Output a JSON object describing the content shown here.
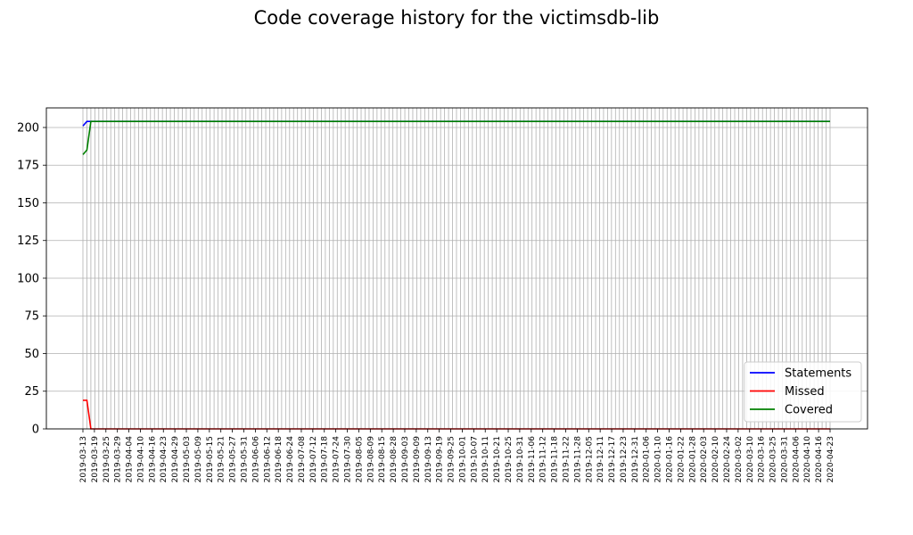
{
  "chart_data": {
    "type": "line",
    "title": "Code coverage history for the victimsdb-lib",
    "xlabel": "",
    "ylabel": "",
    "ylim": [
      0,
      213
    ],
    "yticks": [
      0,
      25,
      50,
      75,
      100,
      125,
      150,
      175,
      200
    ],
    "grid": true,
    "legend_position": "lower-right",
    "xtick_labels": [
      "2019-03-13",
      "2019-03-19",
      "2019-03-25",
      "2019-03-29",
      "2019-04-04",
      "2019-04-10",
      "2019-04-16",
      "2019-04-23",
      "2019-04-29",
      "2019-05-03",
      "2019-05-09",
      "2019-05-15",
      "2019-05-21",
      "2019-05-27",
      "2019-05-31",
      "2019-06-06",
      "2019-06-12",
      "2019-06-18",
      "2019-06-24",
      "2019-07-08",
      "2019-07-12",
      "2019-07-18",
      "2019-07-24",
      "2019-07-30",
      "2019-08-05",
      "2019-08-09",
      "2019-08-15",
      "2019-08-28",
      "2019-09-03",
      "2019-09-09",
      "2019-09-13",
      "2019-09-19",
      "2019-09-25",
      "2019-10-01",
      "2019-10-07",
      "2019-10-11",
      "2019-10-21",
      "2019-10-25",
      "2019-10-31",
      "2019-11-06",
      "2019-11-12",
      "2019-11-18",
      "2019-11-22",
      "2019-11-28",
      "2019-12-05",
      "2019-12-11",
      "2019-12-17",
      "2019-12-23",
      "2019-12-31",
      "2020-01-06",
      "2020-01-10",
      "2020-01-16",
      "2020-01-22",
      "2020-01-28",
      "2020-02-03",
      "2020-02-10",
      "2020-02-24",
      "2020-03-02",
      "2020-03-10",
      "2020-03-16",
      "2020-03-25",
      "2020-03-31",
      "2020-04-06",
      "2020-04-10",
      "2020-04-16",
      "2020-04-23"
    ],
    "series": [
      {
        "name": "Statements",
        "color": "#0000ff",
        "first_values": [
          201,
          204,
          204
        ],
        "steady_value": 204
      },
      {
        "name": "Missed",
        "color": "#ff0000",
        "first_values": [
          19,
          19,
          0
        ],
        "steady_value": 0
      },
      {
        "name": "Covered",
        "color": "#008000",
        "first_values": [
          182,
          185,
          204
        ],
        "steady_value": 204
      }
    ]
  }
}
